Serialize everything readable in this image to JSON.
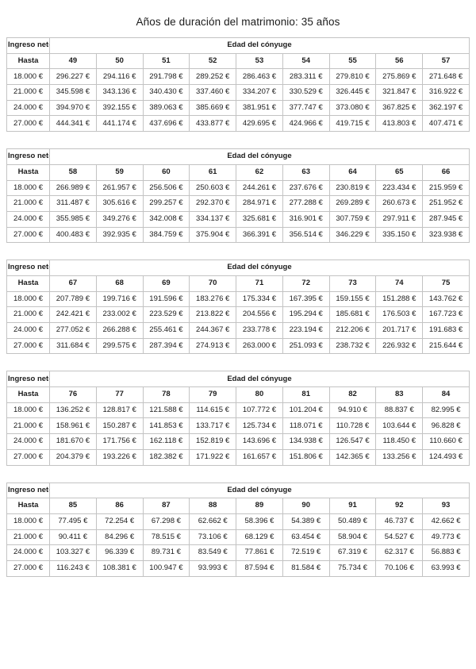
{
  "page": {
    "title": "Años de duración del matrimonio: 35 años"
  },
  "labels": {
    "income_column": "Ingreso neto",
    "age_group": "Edad del cónyuge",
    "threshold": "Hasta"
  },
  "colors": {
    "border": "#c3c3c3",
    "text": "#1c1c1c",
    "background": "#ffffff"
  },
  "tables": [
    {
      "ages": [
        "49",
        "50",
        "51",
        "52",
        "53",
        "54",
        "55",
        "56",
        "57"
      ],
      "rows": [
        {
          "income": "18.000 €",
          "values": [
            "296.227 €",
            "294.116 €",
            "291.798 €",
            "289.252 €",
            "286.463 €",
            "283.311 €",
            "279.810 €",
            "275.869 €",
            "271.648 €"
          ]
        },
        {
          "income": "21.000 €",
          "values": [
            "345.598 €",
            "343.136 €",
            "340.430 €",
            "337.460 €",
            "334.207 €",
            "330.529 €",
            "326.445 €",
            "321.847 €",
            "316.922 €"
          ]
        },
        {
          "income": "24.000 €",
          "values": [
            "394.970 €",
            "392.155 €",
            "389.063 €",
            "385.669 €",
            "381.951 €",
            "377.747 €",
            "373.080 €",
            "367.825 €",
            "362.197 €"
          ]
        },
        {
          "income": "27.000 €",
          "values": [
            "444.341 €",
            "441.174 €",
            "437.696 €",
            "433.877 €",
            "429.695 €",
            "424.966 €",
            "419.715 €",
            "413.803 €",
            "407.471 €"
          ]
        }
      ]
    },
    {
      "ages": [
        "58",
        "59",
        "60",
        "61",
        "62",
        "63",
        "64",
        "65",
        "66"
      ],
      "rows": [
        {
          "income": "18.000 €",
          "values": [
            "266.989 €",
            "261.957 €",
            "256.506 €",
            "250.603 €",
            "244.261 €",
            "237.676 €",
            "230.819 €",
            "223.434 €",
            "215.959 €"
          ]
        },
        {
          "income": "21.000 €",
          "values": [
            "311.487 €",
            "305.616 €",
            "299.257 €",
            "292.370 €",
            "284.971 €",
            "277.288 €",
            "269.289 €",
            "260.673 €",
            "251.952 €"
          ]
        },
        {
          "income": "24.000 €",
          "values": [
            "355.985 €",
            "349.276 €",
            "342.008 €",
            "334.137 €",
            "325.681 €",
            "316.901 €",
            "307.759 €",
            "297.911 €",
            "287.945 €"
          ]
        },
        {
          "income": "27.000 €",
          "values": [
            "400.483 €",
            "392.935 €",
            "384.759 €",
            "375.904 €",
            "366.391 €",
            "356.514 €",
            "346.229 €",
            "335.150 €",
            "323.938 €"
          ]
        }
      ]
    },
    {
      "ages": [
        "67",
        "68",
        "69",
        "70",
        "71",
        "72",
        "73",
        "74",
        "75"
      ],
      "rows": [
        {
          "income": "18.000 €",
          "values": [
            "207.789 €",
            "199.716 €",
            "191.596 €",
            "183.276 €",
            "175.334 €",
            "167.395 €",
            "159.155 €",
            "151.288 €",
            "143.762 €"
          ]
        },
        {
          "income": "21.000 €",
          "values": [
            "242.421 €",
            "233.002 €",
            "223.529 €",
            "213.822 €",
            "204.556 €",
            "195.294 €",
            "185.681 €",
            "176.503 €",
            "167.723 €"
          ]
        },
        {
          "income": "24.000 €",
          "values": [
            "277.052 €",
            "266.288 €",
            "255.461 €",
            "244.367 €",
            "233.778 €",
            "223.194 €",
            "212.206 €",
            "201.717 €",
            "191.683 €"
          ]
        },
        {
          "income": "27.000 €",
          "values": [
            "311.684 €",
            "299.575 €",
            "287.394 €",
            "274.913 €",
            "263.000 €",
            "251.093 €",
            "238.732 €",
            "226.932 €",
            "215.644 €"
          ]
        }
      ]
    },
    {
      "ages": [
        "76",
        "77",
        "78",
        "79",
        "80",
        "81",
        "82",
        "83",
        "84"
      ],
      "rows": [
        {
          "income": "18.000 €",
          "values": [
            "136.252 €",
            "128.817 €",
            "121.588 €",
            "114.615 €",
            "107.772 €",
            "101.204 €",
            "94.910 €",
            "88.837 €",
            "82.995 €"
          ]
        },
        {
          "income": "21.000 €",
          "values": [
            "158.961 €",
            "150.287 €",
            "141.853 €",
            "133.717 €",
            "125.734 €",
            "118.071 €",
            "110.728 €",
            "103.644 €",
            "96.828 €"
          ]
        },
        {
          "income": "24.000 €",
          "values": [
            "181.670 €",
            "171.756 €",
            "162.118 €",
            "152.819 €",
            "143.696 €",
            "134.938 €",
            "126.547 €",
            "118.450 €",
            "110.660 €"
          ]
        },
        {
          "income": "27.000 €",
          "values": [
            "204.379 €",
            "193.226 €",
            "182.382 €",
            "171.922 €",
            "161.657 €",
            "151.806 €",
            "142.365 €",
            "133.256 €",
            "124.493 €"
          ]
        }
      ]
    },
    {
      "ages": [
        "85",
        "86",
        "87",
        "88",
        "89",
        "90",
        "91",
        "92",
        "93"
      ],
      "rows": [
        {
          "income": "18.000 €",
          "values": [
            "77.495 €",
            "72.254 €",
            "67.298 €",
            "62.662 €",
            "58.396 €",
            "54.389 €",
            "50.489 €",
            "46.737 €",
            "42.662 €"
          ]
        },
        {
          "income": "21.000 €",
          "values": [
            "90.411 €",
            "84.296 €",
            "78.515 €",
            "73.106 €",
            "68.129 €",
            "63.454 €",
            "58.904 €",
            "54.527 €",
            "49.773 €"
          ]
        },
        {
          "income": "24.000 €",
          "values": [
            "103.327 €",
            "96.339 €",
            "89.731 €",
            "83.549 €",
            "77.861 €",
            "72.519 €",
            "67.319 €",
            "62.317 €",
            "56.883 €"
          ]
        },
        {
          "income": "27.000 €",
          "values": [
            "116.243 €",
            "108.381 €",
            "100.947 €",
            "93.993 €",
            "87.594 €",
            "81.584 €",
            "75.734 €",
            "70.106 €",
            "63.993 €"
          ]
        }
      ]
    }
  ]
}
